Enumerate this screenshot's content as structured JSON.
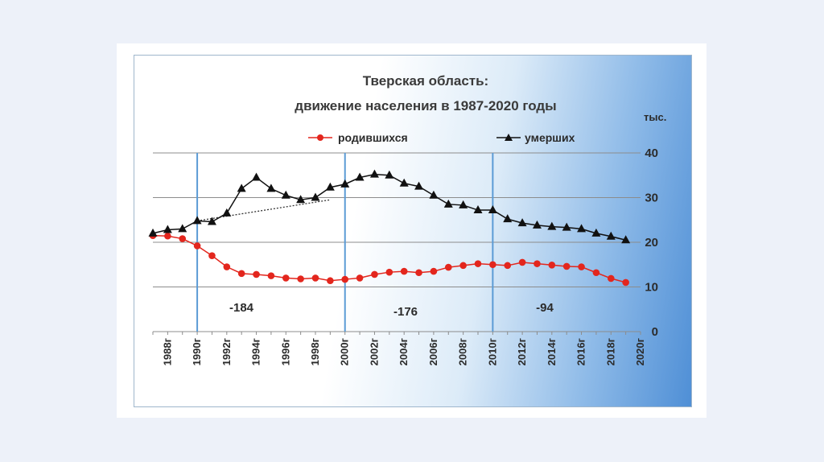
{
  "chart_data": {
    "type": "line",
    "title": "Тверская  область:",
    "subtitle": "движение населения в 1987-2020 годы",
    "unit_label": "тыс.",
    "ylim": [
      0,
      40
    ],
    "y_ticks": [
      0,
      10,
      20,
      30,
      40
    ],
    "x": [
      1987,
      1988,
      1989,
      1990,
      1991,
      1992,
      1993,
      1994,
      1995,
      1996,
      1997,
      1998,
      1999,
      2000,
      2001,
      2002,
      2003,
      2004,
      2005,
      2006,
      2007,
      2008,
      2009,
      2010,
      2011,
      2012,
      2013,
      2014,
      2015,
      2016,
      2017,
      2018,
      2019
    ],
    "x_tick_labels": [
      "1988г",
      "1990г",
      "1992г",
      "1994г",
      "1996г",
      "1998г",
      "2000г",
      "2002г",
      "2004г",
      "2006г",
      "2008г",
      "2010г",
      "2012г",
      "2014г",
      "2016г",
      "2018г",
      "2020г"
    ],
    "x_tick_values": [
      1988,
      1990,
      1992,
      1994,
      1996,
      1998,
      2000,
      2002,
      2004,
      2006,
      2008,
      2010,
      2012,
      2014,
      2016,
      2018,
      2020
    ],
    "series": [
      {
        "name": "родившихся",
        "color": "#e3261d",
        "marker": "circle",
        "values": [
          21.5,
          21.4,
          20.8,
          19.2,
          17.0,
          14.5,
          13.0,
          12.8,
          12.5,
          12.0,
          11.8,
          12.0,
          11.4,
          11.7,
          12.0,
          12.8,
          13.3,
          13.5,
          13.2,
          13.5,
          14.4,
          14.8,
          15.2,
          15.0,
          14.8,
          15.5,
          15.2,
          14.9,
          14.6,
          14.5,
          13.2,
          11.9,
          11.0
        ]
      },
      {
        "name": "умерших",
        "color": "#111111",
        "marker": "triangle",
        "values": [
          22.0,
          22.8,
          23.0,
          24.8,
          24.6,
          26.5,
          32.0,
          34.5,
          32.0,
          30.5,
          29.5,
          30.0,
          32.3,
          33.0,
          34.5,
          35.2,
          35.0,
          33.2,
          32.5,
          30.5,
          28.5,
          28.3,
          27.2,
          27.2,
          25.2,
          24.3,
          23.8,
          23.5,
          23.3,
          23.0,
          22.0,
          21.3,
          20.5
        ]
      }
    ],
    "trend_line": {
      "from": [
        1990,
        24.8
      ],
      "to": [
        1999,
        29.5
      ]
    },
    "annotations": [
      "-184",
      "-176",
      "-94"
    ],
    "dividers": [
      1990,
      2000,
      2010
    ],
    "grid": true
  }
}
